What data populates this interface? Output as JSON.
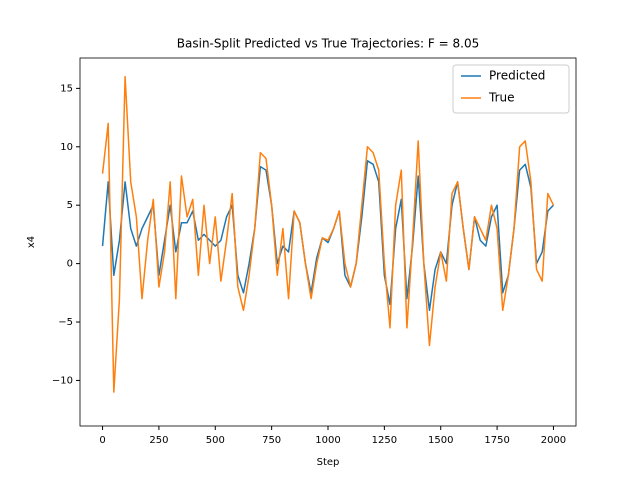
{
  "chart_data": {
    "type": "line",
    "title": "Basin-Split Predicted vs True Trajectories: F = 8.05",
    "x_label": "Step",
    "y_label": "x4",
    "x": [
      0,
      25,
      50,
      75,
      100,
      125,
      150,
      175,
      200,
      225,
      250,
      275,
      300,
      325,
      350,
      375,
      400,
      425,
      450,
      475,
      500,
      525,
      550,
      575,
      600,
      625,
      650,
      675,
      700,
      725,
      750,
      775,
      800,
      825,
      850,
      875,
      900,
      925,
      950,
      975,
      1000,
      1025,
      1050,
      1075,
      1100,
      1125,
      1150,
      1175,
      1200,
      1225,
      1250,
      1275,
      1300,
      1325,
      1350,
      1375,
      1400,
      1425,
      1450,
      1475,
      1500,
      1525,
      1550,
      1575,
      1600,
      1625,
      1650,
      1675,
      1700,
      1725,
      1750,
      1775,
      1800,
      1825,
      1850,
      1875,
      1900,
      1925,
      1950,
      1975,
      2000
    ],
    "series": [
      {
        "name": "Predicted",
        "color": "#1f77b4",
        "values": [
          1.5,
          7,
          -1,
          2,
          7,
          3,
          1.5,
          3,
          4,
          5,
          -1,
          2,
          5,
          1,
          3.5,
          3.5,
          4.5,
          2,
          2.5,
          2,
          1.5,
          2,
          4,
          5,
          -1,
          -2.5,
          0,
          3,
          8.3,
          8,
          5,
          0,
          1.5,
          1,
          4.5,
          3.5,
          0,
          -2.5,
          0.5,
          2.2,
          1.8,
          3,
          4.5,
          -1,
          -2,
          0,
          4,
          8.8,
          8.5,
          7,
          -1,
          -3.5,
          3,
          5.5,
          -3,
          1.5,
          7.5,
          0,
          -4,
          -0.5,
          1,
          0,
          5,
          7,
          3,
          -0.5,
          4,
          2,
          1.5,
          4,
          5,
          -2.5,
          -1,
          3,
          8,
          8.5,
          6.5,
          0,
          1,
          4.5,
          5
        ]
      },
      {
        "name": "True",
        "color": "#ff7f0e",
        "values": [
          7.7,
          12,
          -11,
          -3,
          16,
          7,
          4,
          -3,
          2,
          5.5,
          -2,
          1,
          7,
          -3,
          7.5,
          4,
          5.5,
          -1,
          5,
          0,
          4,
          -1.5,
          2,
          6,
          -2,
          -4,
          -1,
          3,
          9.5,
          9,
          5,
          -1,
          3,
          -3,
          4.5,
          3.5,
          0,
          -3,
          0,
          2.2,
          2,
          3,
          4.5,
          0,
          -2,
          0,
          5,
          10,
          9.5,
          8,
          0,
          -5.5,
          5,
          8,
          -5.5,
          2,
          10.5,
          0,
          -7,
          -2,
          1,
          -1.5,
          6,
          7,
          3,
          -0.5,
          4,
          3,
          2,
          5,
          3,
          -4,
          -1,
          3,
          10,
          10.5,
          7,
          -0.5,
          -1.5,
          6,
          5
        ]
      }
    ],
    "xlim": [
      -100,
      2100
    ],
    "ylim": [
      -13.9,
      17.6
    ],
    "xticks": [
      0,
      250,
      500,
      750,
      1000,
      1250,
      1500,
      1750,
      2000
    ],
    "yticks": [
      {
        "value": -10,
        "label": "−10"
      },
      {
        "value": -5,
        "label": "−5"
      },
      0,
      5,
      10,
      15
    ],
    "legend": "upper right"
  }
}
